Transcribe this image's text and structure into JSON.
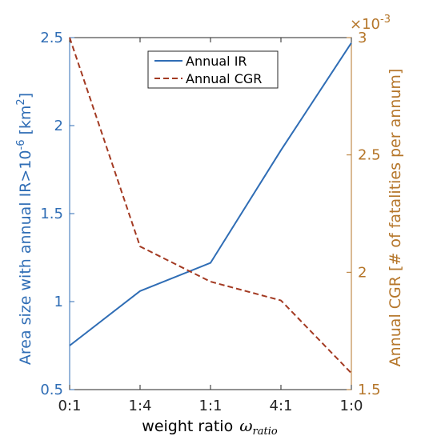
{
  "chart_data": {
    "type": "line",
    "categories": [
      "0:1",
      "1:4",
      "1:1",
      "4:1",
      "1:0"
    ],
    "xlabel": "weight ratio",
    "xlabel_symbol": "ω",
    "xlabel_subscript": "ratio",
    "left_axis": {
      "label": "Area size with annual IR>10",
      "label_exponent": "-6",
      "label_unit_open": " [km",
      "label_unit_exponent": "2",
      "label_unit_close": "]",
      "ylim": [
        0.5,
        2.5
      ],
      "ticks": [
        "0.5",
        "1",
        "1.5",
        "2",
        "2.5"
      ],
      "color": "#2f6db5"
    },
    "right_axis": {
      "label": "Annual CGR [# of fatalities per annum]",
      "multiplier_base": "×10",
      "multiplier_exponent": "-3",
      "ylim": [
        1.5,
        3.0
      ],
      "ticks": [
        "1.5",
        "2",
        "2.5",
        "3"
      ],
      "color": "#b5762a"
    },
    "series": [
      {
        "name": "Annual IR",
        "axis": "left",
        "values": [
          0.75,
          1.06,
          1.22,
          1.86,
          2.47
        ],
        "color": "#2f6db5",
        "style": "solid"
      },
      {
        "name": "Annual CGR",
        "axis": "right",
        "values": [
          3.0,
          2.11,
          1.96,
          1.88,
          1.57
        ],
        "color": "#a33a22",
        "style": "dashed"
      }
    ],
    "legend_position": "top-center",
    "grid": false
  }
}
